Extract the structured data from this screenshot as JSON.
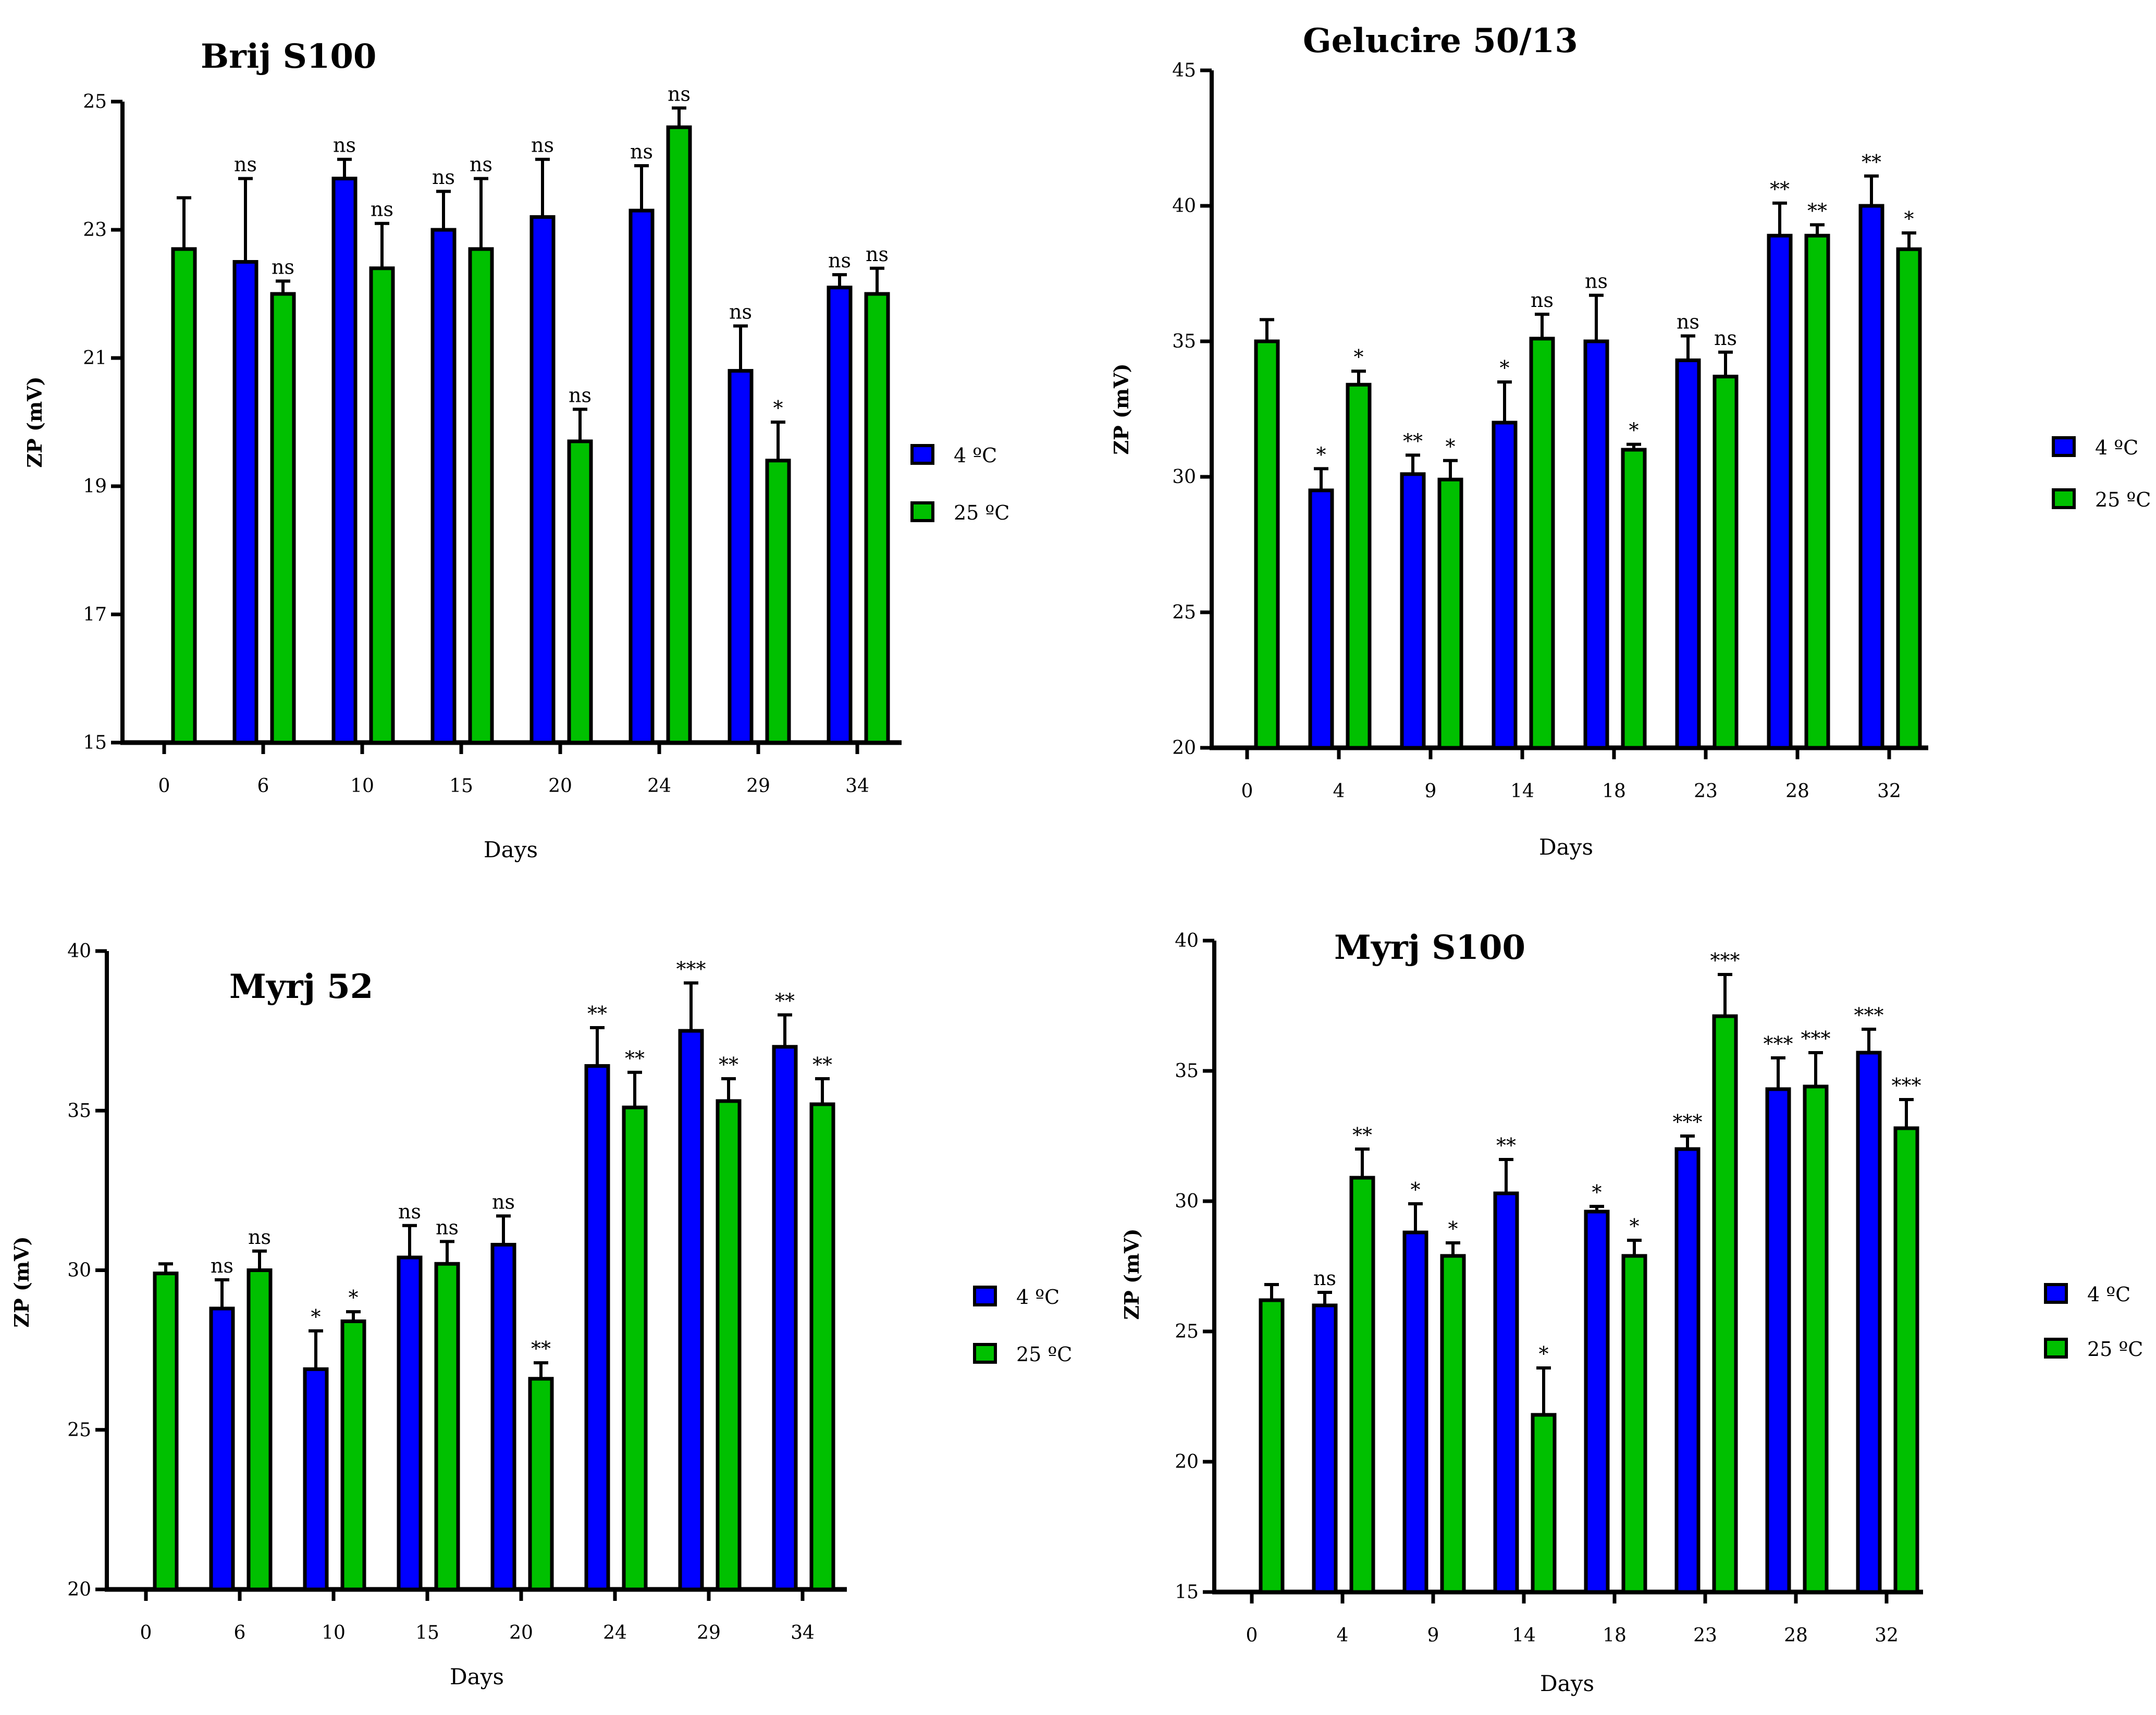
{
  "chart_data": [
    {
      "type": "bar",
      "title": "Brij S100",
      "xlabel": "Days",
      "ylabel": "ZP (mV)",
      "ylim": [
        15,
        25
      ],
      "yticks": [
        15,
        17,
        19,
        21,
        23,
        25
      ],
      "categories": [
        "0",
        "6",
        "10",
        "15",
        "20",
        "24",
        "29",
        "34"
      ],
      "series": [
        {
          "name": "4 ºC",
          "color": "#0000ff",
          "values": [
            null,
            22.5,
            23.8,
            23.0,
            23.2,
            23.3,
            20.8,
            22.1
          ],
          "errors": [
            null,
            1.3,
            0.3,
            0.6,
            0.9,
            0.7,
            0.7,
            0.2
          ],
          "labels": [
            "",
            "ns",
            "ns",
            "ns",
            "ns",
            "ns",
            "ns",
            "ns"
          ]
        },
        {
          "name": "25 ºC",
          "color": "#00c000",
          "values": [
            22.7,
            22.0,
            22.4,
            22.7,
            19.7,
            24.6,
            19.4,
            22.0
          ],
          "errors": [
            0.8,
            0.2,
            0.7,
            1.1,
            0.5,
            0.3,
            0.6,
            0.4
          ],
          "labels": [
            "",
            "ns",
            "ns",
            "ns",
            "ns",
            "ns",
            "*",
            "ns"
          ]
        }
      ],
      "legend": "right"
    },
    {
      "type": "bar",
      "title": "Gelucire 50/13",
      "xlabel": "Days",
      "ylabel": "ZP (mV)",
      "ylim": [
        20,
        45
      ],
      "yticks": [
        20,
        25,
        30,
        35,
        40,
        45
      ],
      "categories": [
        "0",
        "4",
        "9",
        "14",
        "18",
        "23",
        "28",
        "32"
      ],
      "series": [
        {
          "name": "4 ºC",
          "color": "#0000ff",
          "values": [
            null,
            29.5,
            30.1,
            32.0,
            35.0,
            34.3,
            38.9,
            40.0
          ],
          "errors": [
            null,
            0.8,
            0.7,
            1.5,
            1.7,
            0.9,
            1.2,
            1.1
          ],
          "labels": [
            "",
            "*",
            "**",
            "*",
            "ns",
            "ns",
            "**",
            "**"
          ]
        },
        {
          "name": "25 ºC",
          "color": "#00c000",
          "values": [
            35.0,
            33.4,
            29.9,
            35.1,
            31.0,
            33.7,
            38.9,
            38.4
          ],
          "errors": [
            0.8,
            0.5,
            0.7,
            0.9,
            0.2,
            0.9,
            0.4,
            0.6
          ],
          "labels": [
            "",
            "*",
            "*",
            "ns",
            "*",
            "ns",
            "**",
            "*"
          ]
        }
      ],
      "legend": "right"
    },
    {
      "type": "bar",
      "title": "Myrj 52",
      "xlabel": "Days",
      "ylabel": "ZP (mV)",
      "ylim": [
        20,
        40
      ],
      "yticks": [
        20,
        25,
        30,
        35,
        40
      ],
      "categories": [
        "0",
        "6",
        "10",
        "15",
        "20",
        "24",
        "29",
        "34"
      ],
      "series": [
        {
          "name": "4 ºC",
          "color": "#0000ff",
          "values": [
            null,
            28.8,
            26.9,
            30.4,
            30.8,
            36.4,
            37.5,
            37.0
          ],
          "errors": [
            null,
            0.9,
            1.2,
            1.0,
            0.9,
            1.2,
            1.5,
            1.0
          ],
          "labels": [
            "",
            "ns",
            "*",
            "ns",
            "ns",
            "**",
            "***",
            "**"
          ]
        },
        {
          "name": "25 ºC",
          "color": "#00c000",
          "values": [
            29.9,
            30.0,
            28.4,
            30.2,
            26.6,
            35.1,
            35.3,
            35.2
          ],
          "errors": [
            0.3,
            0.6,
            0.3,
            0.7,
            0.5,
            1.1,
            0.7,
            0.8
          ],
          "labels": [
            "",
            "ns",
            "*",
            "ns",
            "**",
            "**",
            "**",
            "**"
          ]
        }
      ],
      "legend": "right"
    },
    {
      "type": "bar",
      "title": "Myrj S100",
      "xlabel": "Days",
      "ylabel": "ZP (mV)",
      "ylim": [
        15,
        40
      ],
      "yticks": [
        15,
        20,
        25,
        30,
        35,
        40
      ],
      "categories": [
        "0",
        "4",
        "9",
        "14",
        "18",
        "23",
        "28",
        "32"
      ],
      "series": [
        {
          "name": "4 ºC",
          "color": "#0000ff",
          "values": [
            null,
            26.0,
            28.8,
            30.3,
            29.6,
            32.0,
            34.3,
            35.7
          ],
          "errors": [
            null,
            0.5,
            1.1,
            1.3,
            0.2,
            0.5,
            1.2,
            0.9
          ],
          "labels": [
            "",
            "ns",
            "*",
            "**",
            "*",
            "***",
            "***",
            "***"
          ]
        },
        {
          "name": "25 ºC",
          "color": "#00c000",
          "values": [
            26.2,
            30.9,
            27.9,
            21.8,
            27.9,
            37.1,
            34.4,
            32.8
          ],
          "errors": [
            0.6,
            1.1,
            0.5,
            1.8,
            0.6,
            1.6,
            1.3,
            1.1
          ],
          "labels": [
            "",
            "**",
            "*",
            "*",
            "*",
            "***",
            "***",
            "***"
          ]
        }
      ],
      "legend": "right"
    }
  ]
}
